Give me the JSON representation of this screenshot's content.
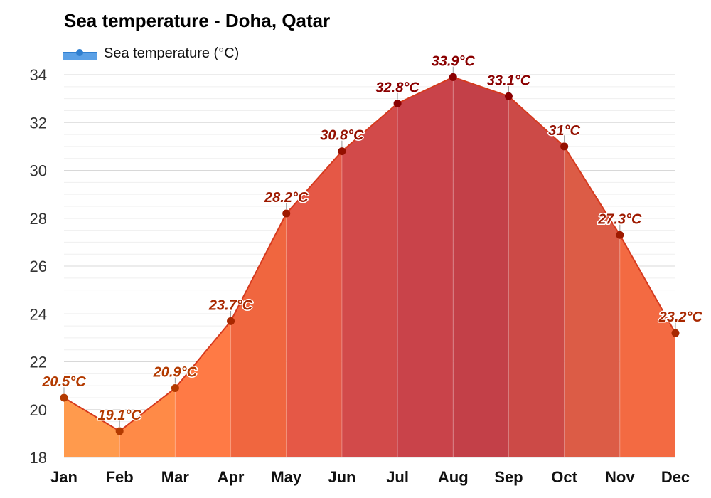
{
  "title": "Sea temperature - Doha, Qatar",
  "legend": {
    "label": "Sea temperature (°C)",
    "position": "top-left"
  },
  "chart_data": {
    "type": "area",
    "title": "Sea temperature - Doha, Qatar",
    "xlabel": "",
    "ylabel": "",
    "categories": [
      "Jan",
      "Feb",
      "Mar",
      "Apr",
      "May",
      "Jun",
      "Jul",
      "Aug",
      "Sep",
      "Oct",
      "Nov",
      "Dec"
    ],
    "series": [
      {
        "name": "Sea temperature (°C)",
        "values": [
          20.5,
          19.1,
          20.9,
          23.7,
          28.2,
          30.8,
          32.8,
          33.9,
          33.1,
          31,
          27.3,
          23.2
        ],
        "labels": [
          "20.5°C",
          "19.1°C",
          "20.9°C",
          "23.7°C",
          "28.2°C",
          "30.8°C",
          "32.8°C",
          "33.9°C",
          "33.1°C",
          "31°C",
          "27.3°C",
          "23.2°C"
        ]
      }
    ],
    "ylim": [
      18,
      34
    ],
    "yticks": [
      18,
      20,
      22,
      24,
      26,
      28,
      30,
      32,
      34
    ],
    "grid": true,
    "legend_position": "top-left",
    "colors": {
      "line": "#d63a1e",
      "palette": [
        "#ff9a4d",
        "#ff8a47",
        "#ff7a45",
        "#f0663f",
        "#e55846",
        "#d24a4a",
        "#c9434a",
        "#c34048",
        "#cc4a47",
        "#dc5c46",
        "#f36a42",
        "#ff8848"
      ],
      "label_palette": [
        "#b33a00",
        "#b33a00",
        "#b33a00",
        "#a82800",
        "#9e1a00",
        "#941000",
        "#8a0000",
        "#8a0000",
        "#8a0000",
        "#941000",
        "#9e1a00",
        "#a82800"
      ]
    }
  }
}
